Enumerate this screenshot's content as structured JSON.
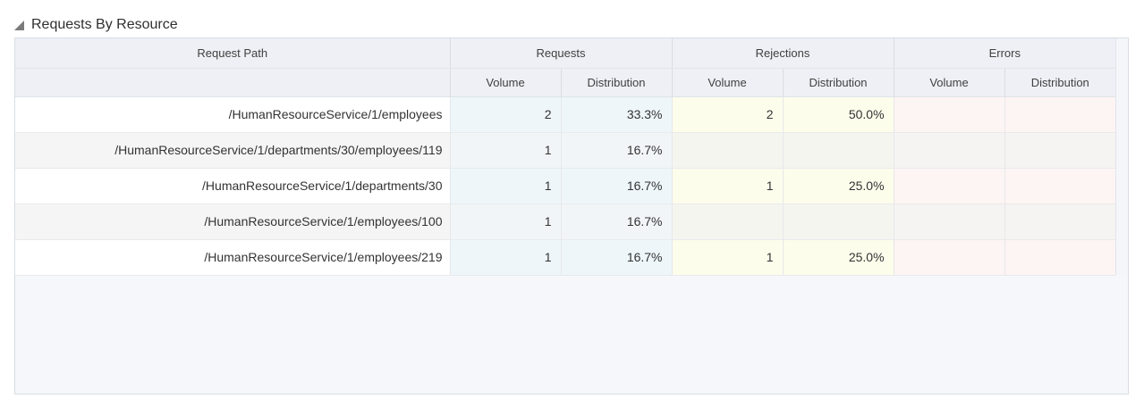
{
  "panel": {
    "title": "Requests By Resource",
    "collapse_icon": "lower-right-triangle"
  },
  "table": {
    "path_header": "Request Path",
    "groups": [
      {
        "label": "Requests"
      },
      {
        "label": "Rejections"
      },
      {
        "label": "Errors"
      }
    ],
    "subheaders": {
      "volume": "Volume",
      "distribution": "Distribution"
    },
    "rows": [
      {
        "path": "/HumanResourceService/1/employees",
        "req_vol": "2",
        "req_dist": "33.3%",
        "rej_vol": "2",
        "rej_dist": "50.0%",
        "err_vol": "",
        "err_dist": ""
      },
      {
        "path": "/HumanResourceService/1/departments/30/employees/119",
        "req_vol": "1",
        "req_dist": "16.7%",
        "rej_vol": "",
        "rej_dist": "",
        "err_vol": "",
        "err_dist": ""
      },
      {
        "path": "/HumanResourceService/1/departments/30",
        "req_vol": "1",
        "req_dist": "16.7%",
        "rej_vol": "1",
        "rej_dist": "25.0%",
        "err_vol": "",
        "err_dist": ""
      },
      {
        "path": "/HumanResourceService/1/employees/100",
        "req_vol": "1",
        "req_dist": "16.7%",
        "rej_vol": "",
        "rej_dist": "",
        "err_vol": "",
        "err_dist": ""
      },
      {
        "path": "/HumanResourceService/1/employees/219",
        "req_vol": "1",
        "req_dist": "16.7%",
        "rej_vol": "1",
        "rej_dist": "25.0%",
        "err_vol": "",
        "err_dist": ""
      }
    ]
  },
  "colors": {
    "requests_tint": "#eef6fa",
    "rejections_tint": "#fdfdec",
    "errors_tint": "#fdf4f4",
    "row_stripe": "#f5f5f5",
    "header_bg": "#eef0f5",
    "panel_bg": "#f5f7fa",
    "panel_border": "#d9dde3"
  }
}
